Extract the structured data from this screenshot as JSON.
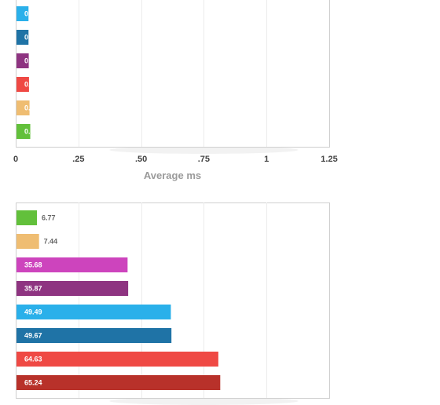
{
  "chart_data": [
    {
      "type": "bar",
      "orientation": "horizontal",
      "series": [
        {
          "values": [
            0.051,
            0.051,
            0.052,
            0.053,
            0.055,
            0.058
          ]
        }
      ],
      "value_labels": [
        "0.051",
        "0.051",
        "0.052",
        "0.053",
        "0.055",
        "0.058"
      ],
      "colors": [
        "#2ab0ea",
        "#1f73a6",
        "#8e3481",
        "#ef4944",
        "#efbd72",
        "#62c03b"
      ],
      "label_colors": [
        "#ffffff",
        "#ffffff",
        "#ffffff",
        "#ffffff",
        "#ffffff",
        "#ffffff"
      ],
      "xlim": [
        0,
        1.25
      ],
      "xticks": [
        0,
        0.25,
        0.5,
        0.75,
        1,
        1.25
      ],
      "xtick_labels": [
        "0",
        ".25",
        ".50",
        ".75",
        "1",
        "1.25"
      ],
      "xlabel": "Average ms",
      "grid": true
    },
    {
      "type": "bar",
      "orientation": "horizontal",
      "series": [
        {
          "values": [
            6.77,
            7.44,
            35.68,
            35.87,
            49.49,
            49.67,
            64.63,
            65.24
          ]
        }
      ],
      "value_labels": [
        "6.77",
        "7.44",
        "35.68",
        "35.87",
        "49.49",
        "49.67",
        "64.63",
        "65.24"
      ],
      "colors": [
        "#62c03b",
        "#efbd72",
        "#cd44bd",
        "#8e3481",
        "#2ab0ea",
        "#1f73a6",
        "#ef4944",
        "#b8312a"
      ],
      "label_colors": [
        "#666666",
        "#666666",
        "#ffffff",
        "#ffffff",
        "#ffffff",
        "#ffffff",
        "#ffffff",
        "#ffffff"
      ],
      "xlim": [
        0,
        100
      ],
      "grid": true
    }
  ]
}
